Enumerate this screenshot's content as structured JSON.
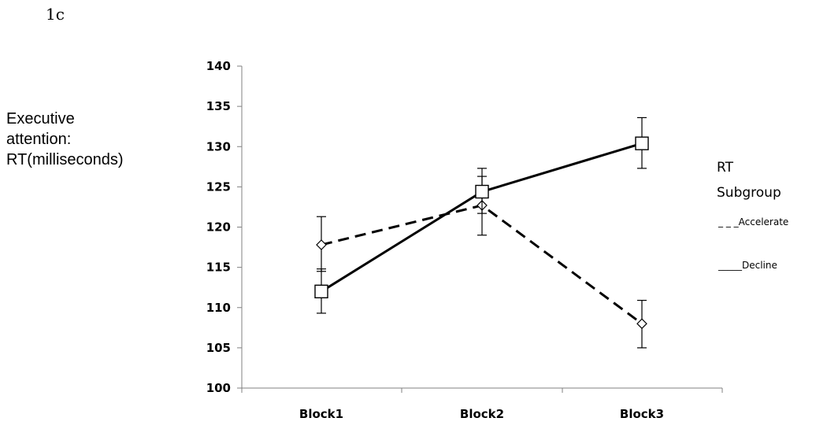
{
  "panel_label": "1c",
  "chart_data": {
    "type": "line",
    "ylabel_lines": [
      "Executive",
      "attention:",
      "RT(milliseconds)"
    ],
    "categories": [
      "Block1",
      "Block2",
      "Block3"
    ],
    "ylim": [
      100,
      140
    ],
    "yticks": [
      100,
      105,
      110,
      115,
      120,
      125,
      130,
      135,
      140
    ],
    "yticks_labels": [
      "100",
      "105",
      "110",
      "115",
      "120",
      "125",
      "130",
      "135",
      "140"
    ],
    "grid": false,
    "legend_title_lines": [
      "RT",
      "Subgroup"
    ],
    "legend_position": "right",
    "series": [
      {
        "name": "Accelerate",
        "legend_label": "_ _ _Accelerate",
        "line_style": "dashed",
        "marker": "diamond",
        "values": [
          117.8,
          122.7,
          108.0
        ],
        "error": [
          [
            114.5,
            121.3
          ],
          [
            119.0,
            126.3
          ],
          [
            105.0,
            110.9
          ]
        ]
      },
      {
        "name": "Decline",
        "legend_label": "_____Decline",
        "line_style": "solid",
        "marker": "square",
        "values": [
          112.0,
          124.4,
          130.4
        ],
        "error": [
          [
            109.3,
            114.8
          ],
          [
            121.7,
            127.3
          ],
          [
            127.3,
            133.6
          ]
        ]
      }
    ],
    "colors": {
      "line": "#000000",
      "axis": "#808080"
    }
  }
}
